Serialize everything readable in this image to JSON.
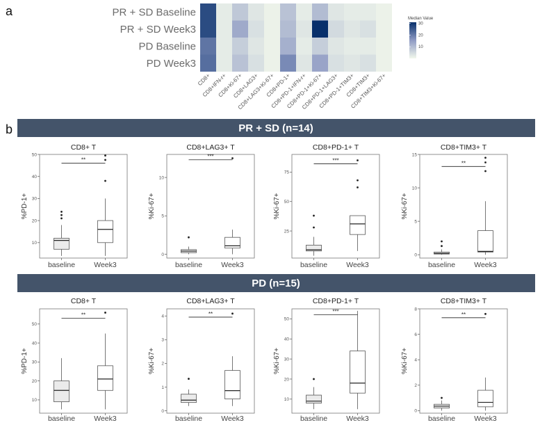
{
  "panel_a_letter": "a",
  "panel_b_letter": "b",
  "colors": {
    "banner": "#44546a",
    "heat_low": "#f2f8ec",
    "heat_high": "#08306b",
    "box_fill": "#ebebeb",
    "box_line": "#555555"
  },
  "chart_data": [
    {
      "id": "heatmap",
      "type": "heatmap",
      "title": "",
      "rows": [
        "PR + SD Baseline",
        "PR + SD Week3",
        "PD Baseline",
        "PD Week3"
      ],
      "columns": [
        "CD8+",
        "CD8+IFN-r+",
        "CD8+Ki-67+",
        "CD8+LAG3+",
        "CD8+LAG3+Ki-67+",
        "CD8+PD-1+",
        "CD8+PD-1+IFN-r+",
        "CD8+PD-1+Ki-67+",
        "CD8+PD-1+LAG3+",
        "CD8+PD-1+TIM3+",
        "CD8+TIM3+",
        "CD8+TIM3+Ki-67+"
      ],
      "values": [
        [
          27,
          2,
          8,
          3,
          1,
          9,
          2,
          10,
          3,
          2,
          2,
          1
        ],
        [
          27,
          2,
          13,
          4,
          1,
          10,
          3,
          31,
          5,
          3,
          4,
          1
        ],
        [
          21,
          2,
          7,
          3,
          1,
          12,
          2,
          7,
          3,
          2,
          2,
          1
        ],
        [
          22,
          2,
          9,
          4,
          1,
          18,
          3,
          14,
          4,
          3,
          4,
          1
        ]
      ],
      "legend_title": "Median Value",
      "legend_ticks": [
        10,
        20,
        30
      ],
      "legend_range": [
        0,
        31
      ]
    },
    {
      "id": "banner_top",
      "type": "table",
      "label": "PR + SD (n=14)"
    },
    {
      "id": "prsd_cd8",
      "type": "box",
      "title": "CD8+ T",
      "ylabel": "%PD-1+",
      "ylim": [
        3,
        50
      ],
      "yticks": [
        10,
        20,
        30,
        40,
        50
      ],
      "categories": [
        "baseline",
        "Week3"
      ],
      "boxes": [
        {
          "min": 4,
          "q1": 7,
          "median": 11,
          "q3": 12,
          "max": 18,
          "outliers": [
            21,
            22.5,
            24
          ]
        },
        {
          "min": 4,
          "q1": 10,
          "median": 16,
          "q3": 20,
          "max": 30,
          "outliers": [
            38,
            47.5,
            49.5
          ]
        }
      ],
      "sig_label": "**",
      "sig_y": 46
    },
    {
      "id": "prsd_lag3",
      "type": "box",
      "title": "CD8+LAG3+ T",
      "ylabel": "%Ki-67+",
      "ylim": [
        -0.5,
        13
      ],
      "yticks": [
        0,
        5,
        10
      ],
      "categories": [
        "baseline",
        "Week3"
      ],
      "boxes": [
        {
          "min": 0,
          "q1": 0.2,
          "median": 0.4,
          "q3": 0.6,
          "max": 1,
          "outliers": [
            2.2
          ]
        },
        {
          "min": 0,
          "q1": 0.8,
          "median": 1.1,
          "q3": 2.2,
          "max": 3.2,
          "outliers": [
            12.5
          ]
        }
      ],
      "sig_label": "***",
      "sig_y": 12.3
    },
    {
      "id": "prsd_pd1",
      "type": "box",
      "title": "CD8+PD-1+ T",
      "ylabel": "%Ki-67+",
      "ylim": [
        2,
        90
      ],
      "yticks": [
        25,
        50,
        75
      ],
      "categories": [
        "baseline",
        "Week3"
      ],
      "boxes": [
        {
          "min": 4,
          "q1": 8,
          "median": 9,
          "q3": 13,
          "max": 20,
          "outliers": [
            28,
            38
          ]
        },
        {
          "min": 8,
          "q1": 22,
          "median": 31,
          "q3": 38,
          "max": 38,
          "outliers": [
            62,
            68,
            85
          ]
        }
      ],
      "sig_label": "***",
      "sig_y": 82
    },
    {
      "id": "prsd_tim3",
      "type": "box",
      "title": "CD8+TIM3+ T",
      "ylabel": "%Ki-67+",
      "ylim": [
        -0.5,
        15
      ],
      "yticks": [
        0,
        5,
        10,
        15
      ],
      "categories": [
        "baseline",
        "Week3"
      ],
      "boxes": [
        {
          "min": 0,
          "q1": 0.1,
          "median": 0.2,
          "q3": 0.4,
          "max": 0.8,
          "outliers": [
            1.3,
            2
          ]
        },
        {
          "min": 0,
          "q1": 0.4,
          "median": 0.5,
          "q3": 3.6,
          "max": 8,
          "outliers": [
            12.5,
            13.8,
            14.5
          ]
        }
      ],
      "sig_label": "**",
      "sig_y": 13.2
    },
    {
      "id": "banner_bottom",
      "type": "table",
      "label": "PD (n=15)"
    },
    {
      "id": "pd_cd8",
      "type": "box",
      "title": "CD8+ T",
      "ylabel": "%PD-1+",
      "ylim": [
        3,
        58
      ],
      "yticks": [
        10,
        20,
        30,
        40,
        50
      ],
      "categories": [
        "baseline",
        "Week3"
      ],
      "boxes": [
        {
          "min": 5,
          "q1": 9,
          "median": 15,
          "q3": 20,
          "max": 32,
          "outliers": []
        },
        {
          "min": 5,
          "q1": 15,
          "median": 21,
          "q3": 28,
          "max": 45,
          "outliers": [
            56
          ]
        }
      ],
      "sig_label": "**",
      "sig_y": 53
    },
    {
      "id": "pd_lag3",
      "type": "box",
      "title": "CD8+LAG3+ T",
      "ylabel": "%Ki-67+",
      "ylim": [
        -0.1,
        4.3
      ],
      "yticks": [
        0,
        1,
        2,
        3,
        4
      ],
      "categories": [
        "baseline",
        "Week3"
      ],
      "boxes": [
        {
          "min": 0.2,
          "q1": 0.35,
          "median": 0.45,
          "q3": 0.7,
          "max": 0.9,
          "outliers": [
            1.35
          ]
        },
        {
          "min": 0.2,
          "q1": 0.5,
          "median": 0.85,
          "q3": 1.7,
          "max": 2.3,
          "outliers": [
            4.1
          ]
        }
      ],
      "sig_label": "**",
      "sig_y": 3.95
    },
    {
      "id": "pd_pd1",
      "type": "box",
      "title": "CD8+PD-1+ T",
      "ylabel": "%Ki-67+",
      "ylim": [
        3,
        55
      ],
      "yticks": [
        10,
        20,
        30,
        40,
        50
      ],
      "categories": [
        "baseline",
        "Week3"
      ],
      "boxes": [
        {
          "min": 5,
          "q1": 8,
          "median": 9,
          "q3": 12,
          "max": 16,
          "outliers": [
            20
          ]
        },
        {
          "min": 5,
          "q1": 13,
          "median": 18,
          "q3": 34,
          "max": 54,
          "outliers": []
        }
      ],
      "sig_label": "***",
      "sig_y": 52
    },
    {
      "id": "pd_tim3",
      "type": "box",
      "title": "CD8+TIM3+ T",
      "ylabel": "%Ki-67+",
      "ylim": [
        -0.2,
        8
      ],
      "yticks": [
        0,
        2,
        4,
        6,
        8
      ],
      "categories": [
        "baseline",
        "Week3"
      ],
      "boxes": [
        {
          "min": 0,
          "q1": 0.2,
          "median": 0.35,
          "q3": 0.5,
          "max": 0.8,
          "outliers": [
            1
          ]
        },
        {
          "min": 0,
          "q1": 0.3,
          "median": 0.65,
          "q3": 1.6,
          "max": 2.6,
          "outliers": [
            7.6
          ]
        }
      ],
      "sig_label": "**",
      "sig_y": 7.3
    }
  ]
}
